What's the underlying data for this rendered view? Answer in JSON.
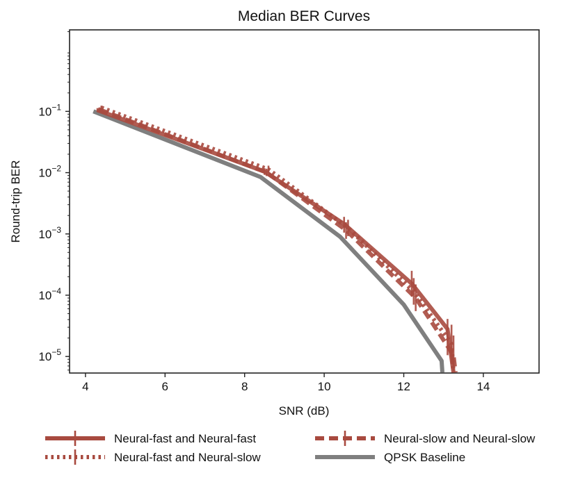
{
  "chart_data": {
    "type": "line",
    "title": "Median BER Curves",
    "xlabel": "SNR (dB)",
    "ylabel": "Round-trip BER",
    "xlim": [
      3.6,
      15.4
    ],
    "ylim_log10": [
      -5.27,
      0.33
    ],
    "x_ticks": [
      4,
      6,
      8,
      10,
      12,
      14
    ],
    "y_ticks": [
      {
        "value": 0.1,
        "base": "10",
        "exp": "−1"
      },
      {
        "value": 0.01,
        "base": "10",
        "exp": "−2"
      },
      {
        "value": 0.001,
        "base": "10",
        "exp": "−3"
      },
      {
        "value": 0.0001,
        "base": "10",
        "exp": "−4"
      },
      {
        "value": 1e-05,
        "base": "10",
        "exp": "−5"
      }
    ],
    "series": [
      {
        "name": "Neural-fast and Neural-fast",
        "style": "solid",
        "color": "#a84a3f",
        "points": [
          {
            "x": 4.3,
            "y": 0.105,
            "err": [
              0.098,
              0.113
            ]
          },
          {
            "x": 8.5,
            "y": 0.0104,
            "err": [
              0.0092,
              0.0118
            ]
          },
          {
            "x": 10.5,
            "y": 0.00145,
            "err": [
              0.00105,
              0.0019
            ]
          },
          {
            "x": 12.2,
            "y": 0.000155,
            "err": [
              9.5e-05,
              0.00025
            ]
          },
          {
            "x": 13.1,
            "y": 2.8e-05,
            "err": [
              1.05e-05,
              4.1e-05
            ]
          },
          {
            "x": 13.25,
            "y": 5.5e-06
          }
        ]
      },
      {
        "name": "Neural-fast and Neural-slow",
        "style": "dotted",
        "color": "#a84a3f",
        "points": [
          {
            "x": 4.4,
            "y": 0.115,
            "err": [
              0.106,
              0.124
            ]
          },
          {
            "x": 8.6,
            "y": 0.0113,
            "err": [
              0.0098,
              0.013
            ]
          },
          {
            "x": 10.6,
            "y": 0.00125,
            "err": [
              0.00092,
              0.0017
            ]
          },
          {
            "x": 12.25,
            "y": 0.000115,
            "err": [
              7e-05,
              0.00019
            ]
          },
          {
            "x": 13.2,
            "y": 1.6e-05,
            "err": [
              7.5e-06,
              3.3e-05
            ]
          },
          {
            "x": 13.25,
            "y": 5.5e-06
          }
        ]
      },
      {
        "name": "Neural-slow and Neural-slow",
        "style": "dashed",
        "color": "#a84a3f",
        "points": [
          {
            "x": 4.35,
            "y": 0.107,
            "err": [
              0.099,
              0.116
            ]
          },
          {
            "x": 8.55,
            "y": 0.0101,
            "err": [
              0.0088,
              0.0116
            ]
          },
          {
            "x": 10.55,
            "y": 0.00115,
            "err": [
              0.00083,
              0.00155
            ]
          },
          {
            "x": 12.3,
            "y": 9e-05,
            "err": [
              5.5e-05,
              0.00015
            ]
          },
          {
            "x": 13.25,
            "y": 1.05e-05,
            "err": [
              5.8e-06,
              2.2e-05
            ]
          },
          {
            "x": 13.3,
            "y": 5.5e-06
          }
        ]
      },
      {
        "name": "QPSK Baseline",
        "style": "solid",
        "color": "#7f7f7f",
        "points": [
          {
            "x": 4.2,
            "y": 0.1
          },
          {
            "x": 8.4,
            "y": 0.0085
          },
          {
            "x": 10.4,
            "y": 0.0009
          },
          {
            "x": 12.0,
            "y": 7e-05
          },
          {
            "x": 12.95,
            "y": 8.5e-06
          },
          {
            "x": 12.97,
            "y": 5.5e-06
          }
        ]
      }
    ],
    "legend": {
      "placement": "bottom",
      "columns": 2
    }
  }
}
